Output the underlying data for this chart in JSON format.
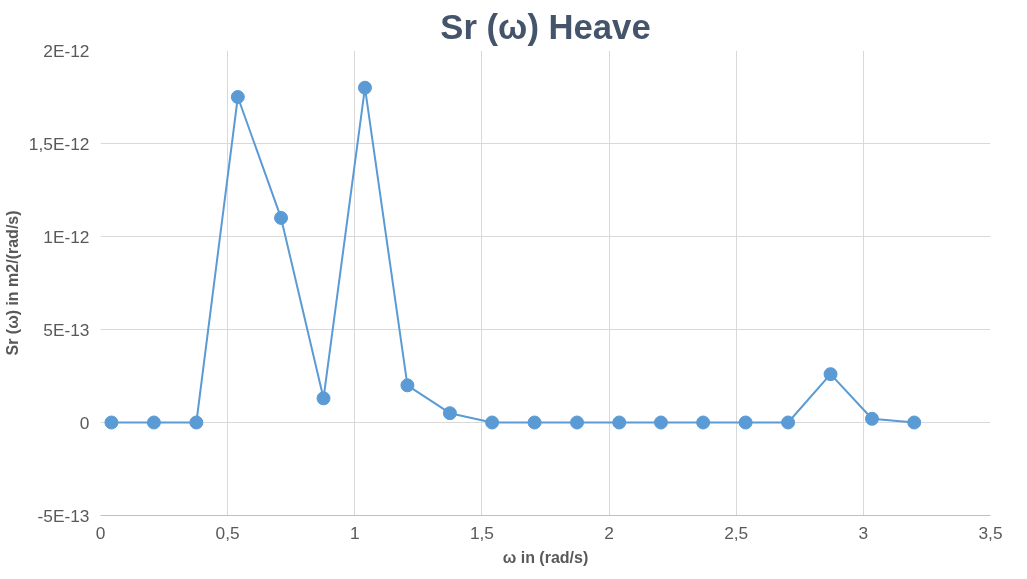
{
  "chart_data": {
    "type": "line",
    "title": "Sr (ω) Heave",
    "xlabel": "ω in (rad/s)",
    "ylabel": "Sr (ω) in m2/(rad/s)",
    "x": [
      0.043,
      0.21,
      0.377,
      0.54,
      0.71,
      0.877,
      1.04,
      1.207,
      1.374,
      1.54,
      1.707,
      1.874,
      2.04,
      2.204,
      2.37,
      2.537,
      2.704,
      2.871,
      3.034,
      3.2
    ],
    "series": [
      {
        "color": "#5b9bd5",
        "values": [
          0,
          0,
          0,
          1.75e-12,
          1.1e-12,
          1.3e-13,
          1.8e-12,
          2e-13,
          5e-14,
          0,
          0,
          0,
          0,
          0,
          0,
          0,
          0,
          2.6e-13,
          2e-14,
          0
        ]
      }
    ],
    "xlim": [
      0,
      3.5
    ],
    "xticks": [
      0,
      {
        "value": 0.5,
        "label": "0,5"
      },
      1,
      {
        "value": 1.5,
        "label": "1,5"
      },
      2,
      {
        "value": 2.5,
        "label": "2,5"
      },
      3,
      {
        "value": 3.5,
        "label": "3,5"
      }
    ],
    "ylim": [
      -5e-13,
      2e-12
    ],
    "yticks": [
      {
        "value": -5e-13,
        "label": "-5E-13"
      },
      0,
      {
        "value": 5e-13,
        "label": "5E-13"
      },
      {
        "value": 1e-12,
        "label": "1E-12"
      },
      {
        "value": 1.5e-12,
        "label": "1,5E-12"
      },
      {
        "value": 2e-12,
        "label": "2E-12"
      }
    ],
    "grid": true,
    "marker": "circle",
    "line_style": "solid"
  }
}
